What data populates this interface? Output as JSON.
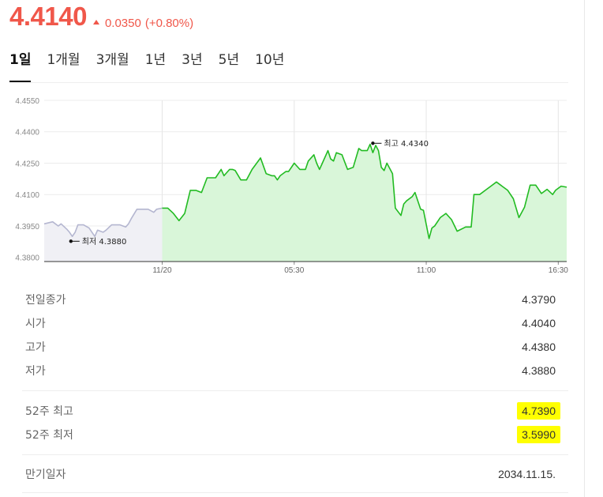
{
  "quote": {
    "price": "4.4140",
    "change": "0.0350",
    "change_pct": "(+0.80%)",
    "up_color": "#f0574a"
  },
  "tabs": [
    {
      "label": "1일",
      "active": true
    },
    {
      "label": "1개월",
      "active": false
    },
    {
      "label": "3개월",
      "active": false
    },
    {
      "label": "1년",
      "active": false
    },
    {
      "label": "3년",
      "active": false
    },
    {
      "label": "5년",
      "active": false
    },
    {
      "label": "10년",
      "active": false
    }
  ],
  "chart_data": {
    "type": "area",
    "y_ticks": [
      "4.4550",
      "4.4400",
      "4.4250",
      "4.4100",
      "4.3950",
      "4.3800"
    ],
    "ylim": [
      4.378,
      4.455
    ],
    "x_ticks": [
      {
        "label": "11/20",
        "t": 42
      },
      {
        "label": "05:30",
        "t": 89
      },
      {
        "label": "11:00",
        "t": 136
      },
      {
        "label": "16:30",
        "t": 183
      }
    ],
    "grid": true,
    "colors": {
      "prev_line": "#b4b6d0",
      "prev_fill": "#f0f0f5",
      "cur_line": "#22bb22",
      "cur_fill": "#d9f6d9"
    },
    "high_annotation": {
      "label": "최고 4.4340",
      "t": 117,
      "value": 4.4345
    },
    "low_annotation": {
      "label": "최저 4.3880",
      "t": 9.5,
      "value": 4.3877
    },
    "series": [
      {
        "segment": "previous",
        "t": [
          0,
          3,
          5,
          6,
          8,
          9,
          10,
          11,
          12,
          14,
          16,
          17,
          18,
          19,
          21,
          22,
          24,
          25,
          26,
          27,
          29,
          30,
          31,
          33,
          35,
          37,
          39,
          40,
          42
        ],
        "values": [
          4.396,
          4.397,
          4.395,
          4.396,
          4.3935,
          4.392,
          4.39,
          4.392,
          4.3955,
          4.3955,
          4.394,
          4.392,
          4.39,
          4.393,
          4.392,
          4.393,
          4.3955,
          4.3955,
          4.3955,
          4.3955,
          4.3945,
          4.396,
          4.3985,
          4.403,
          4.403,
          4.403,
          4.4015,
          4.403,
          4.4035
        ]
      },
      {
        "segment": "current",
        "t": [
          42,
          44,
          46,
          48,
          50,
          52,
          54,
          56,
          58,
          59,
          61,
          63,
          64,
          66,
          67,
          68,
          70,
          72,
          74,
          77,
          79,
          81,
          82,
          83,
          84,
          86,
          87,
          89,
          91,
          93,
          94,
          96,
          97,
          98,
          99,
          101,
          102,
          103,
          104,
          106,
          107,
          108,
          110,
          112,
          113,
          115,
          116,
          117,
          118,
          119,
          120,
          121,
          122,
          124,
          125,
          127,
          128,
          129,
          131,
          132,
          134,
          135,
          137,
          138,
          139,
          141,
          143,
          145,
          147,
          150,
          152,
          153,
          155,
          157,
          159,
          161,
          163,
          165,
          167,
          169,
          171,
          173,
          175,
          177,
          179,
          181,
          182,
          184,
          186
        ],
        "values": [
          4.4035,
          4.4035,
          4.401,
          4.3975,
          4.401,
          4.412,
          4.412,
          4.411,
          4.418,
          4.418,
          4.418,
          4.422,
          4.419,
          4.422,
          4.422,
          4.4215,
          4.417,
          4.417,
          4.422,
          4.4275,
          4.42,
          4.419,
          4.419,
          4.417,
          4.419,
          4.421,
          4.421,
          4.425,
          4.422,
          4.422,
          4.426,
          4.429,
          4.425,
          4.422,
          4.425,
          4.431,
          4.427,
          4.426,
          4.43,
          4.429,
          4.4255,
          4.422,
          4.423,
          4.432,
          4.431,
          4.431,
          4.434,
          4.43,
          4.4335,
          4.431,
          4.423,
          4.4215,
          4.425,
          4.42,
          4.4035,
          4.4,
          4.4055,
          4.407,
          4.409,
          4.411,
          4.403,
          4.4025,
          4.389,
          4.394,
          4.395,
          4.399,
          4.401,
          4.398,
          4.3925,
          4.3945,
          4.3945,
          4.41,
          4.41,
          4.412,
          4.414,
          4.416,
          4.414,
          4.412,
          4.408,
          4.399,
          4.404,
          4.4145,
          4.4145,
          4.4105,
          4.4125,
          4.41,
          4.412,
          4.414,
          4.4135
        ]
      }
    ]
  },
  "stats": [
    {
      "label": "전일종가",
      "value": "4.3790"
    },
    {
      "label": "시가",
      "value": "4.4040"
    },
    {
      "label": "고가",
      "value": "4.4380"
    },
    {
      "label": "저가",
      "value": "4.3880"
    }
  ],
  "week52": [
    {
      "label": "52주 최고",
      "value": "4.7390",
      "highlight": true
    },
    {
      "label": "52주 최저",
      "value": "3.5990",
      "highlight": true
    }
  ],
  "maturity": {
    "label": "만기일자",
    "value": "2034.11.15."
  }
}
